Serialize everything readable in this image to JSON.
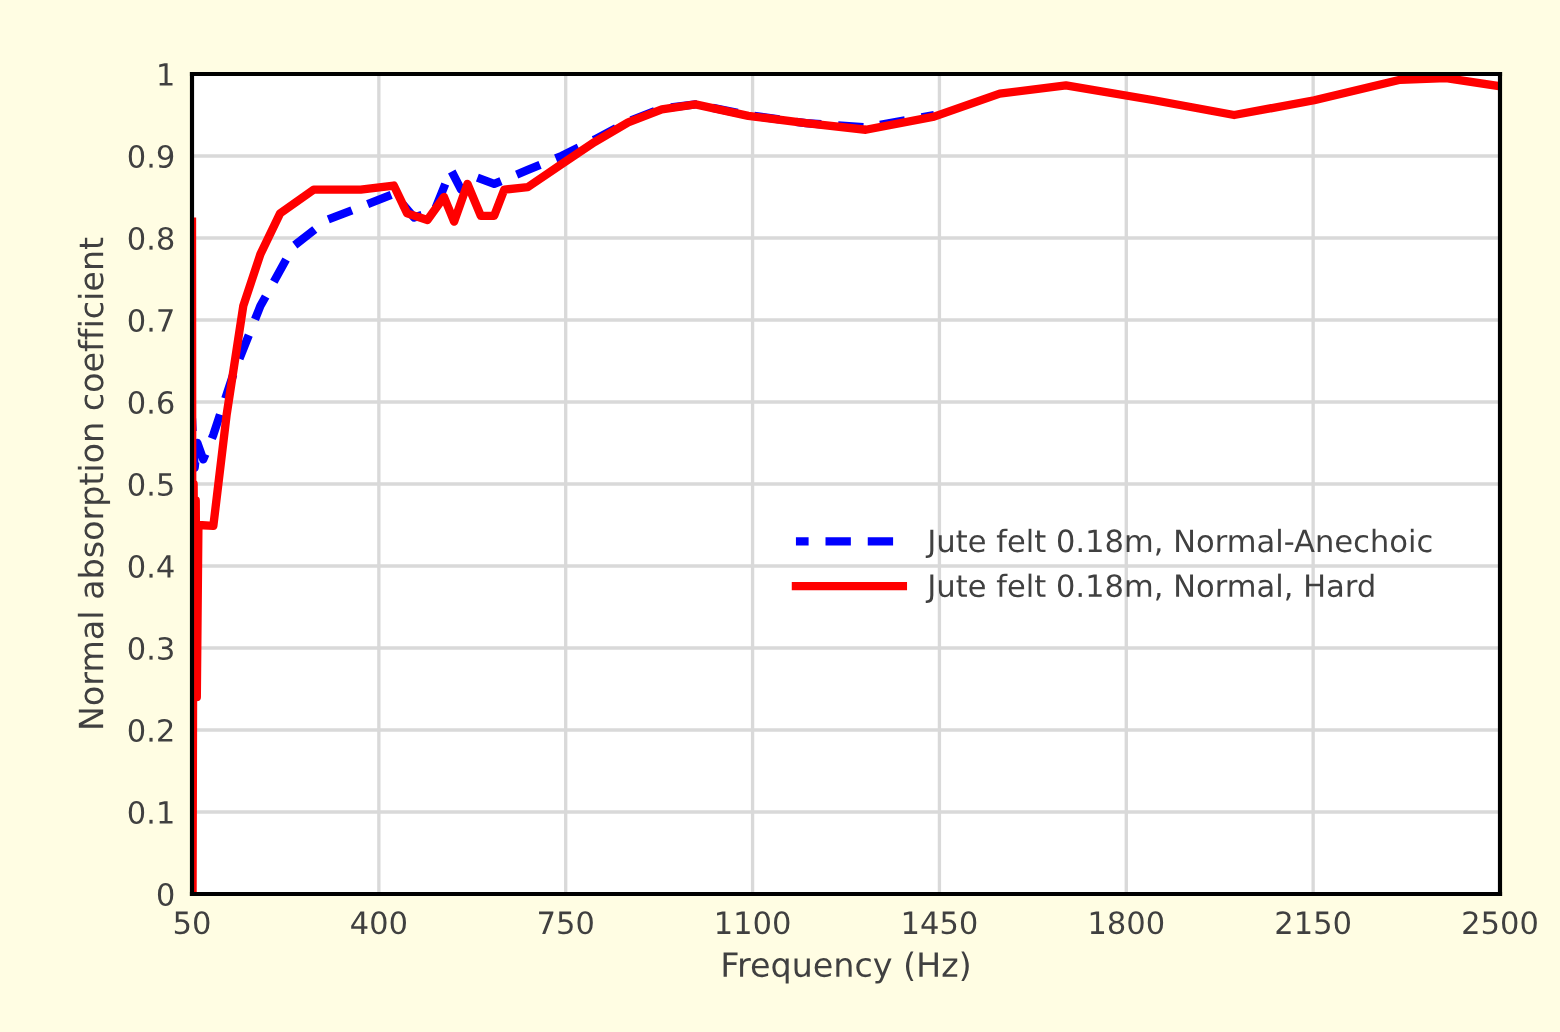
{
  "chart_data": {
    "type": "line",
    "xlabel": "Frequency (Hz)",
    "ylabel": "Normal absorption coefficient",
    "xlim": [
      50,
      2500
    ],
    "xticks": [
      50,
      400,
      750,
      1100,
      1450,
      1800,
      2150,
      2500
    ],
    "ylim": [
      0,
      1
    ],
    "yticks": [
      0,
      0.1,
      0.2,
      0.3,
      0.4,
      0.5,
      0.6,
      0.7,
      0.8,
      0.9,
      1
    ],
    "grid": true,
    "legend": "center right",
    "series": [
      {
        "name": "Jute felt 0.18m, Normal-Anechoic",
        "color": "#0000ff",
        "line_style": "dashed",
        "x": [
          50,
          52,
          55,
          60,
          71,
          90,
          128,
          178,
          240,
          303,
          366,
          428,
          466,
          504,
          535,
          554,
          579,
          616,
          679,
          742,
          804,
          867,
          930,
          993,
          1092,
          1200,
          1312,
          1440
        ],
        "values": [
          0.58,
          0.55,
          0.52,
          0.55,
          0.53,
          0.56,
          0.635,
          0.717,
          0.79,
          0.822,
          0.838,
          0.854,
          0.825,
          0.833,
          0.883,
          0.859,
          0.875,
          0.866,
          0.883,
          0.9,
          0.92,
          0.942,
          0.958,
          0.963,
          0.95,
          0.94,
          0.935,
          0.95
        ]
      },
      {
        "name": "Jute felt 0.18m, Normal, Hard",
        "color": "#ff0000",
        "line_style": "solid",
        "x": [
          50,
          51,
          53,
          55,
          57,
          59,
          62,
          90,
          115,
          146,
          178,
          215,
          278,
          366,
          428,
          453,
          491,
          522,
          541,
          566,
          591,
          616,
          635,
          679,
          742,
          804,
          867,
          930,
          993,
          1092,
          1200,
          1312,
          1440,
          1563,
          1687,
          1852,
          2002,
          2152,
          2313,
          2399,
          2500
        ],
        "values": [
          0.82,
          0.0,
          0.5,
          0.28,
          0.48,
          0.24,
          0.45,
          0.449,
          0.585,
          0.717,
          0.78,
          0.83,
          0.859,
          0.859,
          0.864,
          0.83,
          0.822,
          0.85,
          0.82,
          0.866,
          0.827,
          0.827,
          0.859,
          0.862,
          0.89,
          0.917,
          0.941,
          0.957,
          0.963,
          0.949,
          0.94,
          0.932,
          0.948,
          0.976,
          0.986,
          0.968,
          0.95,
          0.968,
          0.993,
          0.995,
          0.985
        ]
      }
    ]
  }
}
